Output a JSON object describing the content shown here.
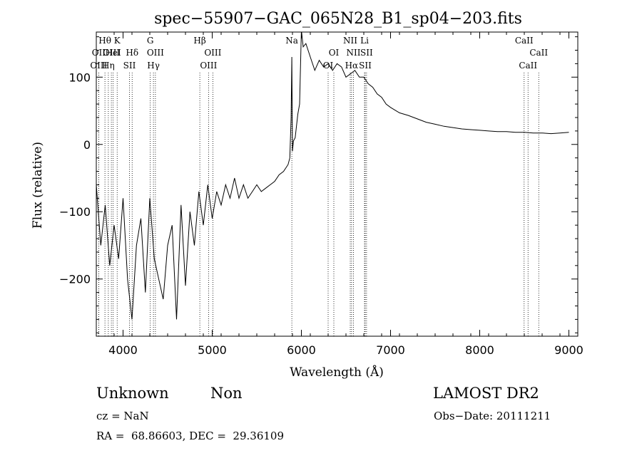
{
  "chart_data": {
    "type": "line",
    "title": "spec−55907−GAC_065N28_B1_sp04−203.fits",
    "xlabel": "Wavelength (Å)",
    "ylabel": "Flux (relative)",
    "xlim": [
      3700,
      9100
    ],
    "ylim": [
      -285,
      167
    ],
    "xticks": [
      4000,
      5000,
      6000,
      7000,
      8000,
      9000
    ],
    "yticks": [
      -200,
      -100,
      0,
      100
    ],
    "xtick_labels": [
      "4000",
      "5000",
      "6000",
      "7000",
      "8000",
      "9000"
    ],
    "ytick_labels": [
      "−200",
      "−100",
      "0",
      "100"
    ],
    "grid": false,
    "legend": "none",
    "series": [
      {
        "x": [
          3700,
          3750,
          3800,
          3850,
          3900,
          3950,
          4000,
          4050,
          4100,
          4150,
          4200,
          4250,
          4300,
          4350,
          4400,
          4450,
          4500,
          4550,
          4600,
          4650,
          4700,
          4750,
          4800,
          4850,
          4900,
          4950,
          5000,
          5050,
          5100,
          5150,
          5200,
          5250,
          5300,
          5350,
          5400,
          5450,
          5500,
          5550,
          5600,
          5650,
          5700,
          5750,
          5800,
          5850,
          5870,
          5885,
          5893,
          5900,
          5910,
          5930,
          5960,
          5980,
          6000,
          6020,
          6050,
          6100,
          6150,
          6200,
          6250,
          6300,
          6350,
          6400,
          6450,
          6500,
          6550,
          6600,
          6650,
          6700,
          6750,
          6800,
          6850,
          6900,
          6950,
          7000,
          7100,
          7200,
          7300,
          7400,
          7500,
          7600,
          7700,
          7800,
          7900,
          8000,
          8100,
          8200,
          8300,
          8400,
          8500,
          8600,
          8700,
          8800,
          8900,
          9000
        ],
        "y": [
          -60,
          -150,
          -90,
          -180,
          -120,
          -170,
          -80,
          -200,
          -260,
          -150,
          -110,
          -220,
          -80,
          -170,
          -200,
          -230,
          -150,
          -120,
          -260,
          -90,
          -210,
          -100,
          -150,
          -70,
          -120,
          -60,
          -110,
          -70,
          -90,
          -60,
          -80,
          -50,
          -80,
          -60,
          -80,
          -70,
          -60,
          -70,
          -65,
          -60,
          -55,
          -45,
          -40,
          -30,
          -20,
          40,
          130,
          -10,
          5,
          10,
          45,
          60,
          170,
          145,
          150,
          130,
          110,
          125,
          115,
          120,
          110,
          120,
          115,
          100,
          105,
          110,
          100,
          100,
          90,
          85,
          75,
          70,
          60,
          55,
          47,
          43,
          38,
          33,
          30,
          27,
          25,
          23,
          22,
          21,
          20,
          19,
          19,
          18,
          18,
          17,
          17,
          16,
          17,
          18
        ]
      }
    ],
    "lines": [
      {
        "name": "Hθ",
        "wave": 3797,
        "row": 1
      },
      {
        "name": "OII",
        "wave": 3727,
        "row": 2
      },
      {
        "name": "OIII",
        "wave": 3869,
        "row": 2
      },
      {
        "name": "OIII",
        "wave": 3727,
        "row": 3
      },
      {
        "name": "Hη",
        "wave": 3835,
        "row": 3
      },
      {
        "name": "K",
        "wave": 3934,
        "row": 1
      },
      {
        "name": "HeI",
        "wave": 3889,
        "row": 2
      },
      {
        "name": "Hδ",
        "wave": 4102,
        "row": 2
      },
      {
        "name": "SII",
        "wave": 4072,
        "row": 3
      },
      {
        "name": "G",
        "wave": 4305,
        "row": 1
      },
      {
        "name": "OIII",
        "wave": 4363,
        "row": 2
      },
      {
        "name": "Hγ",
        "wave": 4341,
        "row": 3
      },
      {
        "name": "Hβ",
        "wave": 4861,
        "row": 1
      },
      {
        "name": "OIII",
        "wave": 5007,
        "row": 2
      },
      {
        "name": "OIII",
        "wave": 4959,
        "row": 3
      },
      {
        "name": "Na",
        "wave": 5893,
        "row": 1
      },
      {
        "name": "OI",
        "wave": 6364,
        "row": 2
      },
      {
        "name": "OI",
        "wave": 6300,
        "row": 3
      },
      {
        "name": "NII",
        "wave": 6548,
        "row": 1
      },
      {
        "name": "NII",
        "wave": 6584,
        "row": 2
      },
      {
        "name": "Hα",
        "wave": 6563,
        "row": 3
      },
      {
        "name": "Li",
        "wave": 6708,
        "row": 1
      },
      {
        "name": "SII",
        "wave": 6731,
        "row": 2
      },
      {
        "name": "SII",
        "wave": 6716,
        "row": 3
      },
      {
        "name": "CaII",
        "wave": 8498,
        "row": 1
      },
      {
        "name": "CaII",
        "wave": 8662,
        "row": 2
      },
      {
        "name": "CaII",
        "wave": 8542,
        "row": 3
      }
    ]
  },
  "info": {
    "class": "Unknown",
    "subclass": "Non",
    "survey": "LAMOST DR2",
    "cz": "cz = NaN",
    "obs_date": "Obs−Date: 20111211",
    "radec": "RA =  68.86603, DEC =  29.36109"
  }
}
